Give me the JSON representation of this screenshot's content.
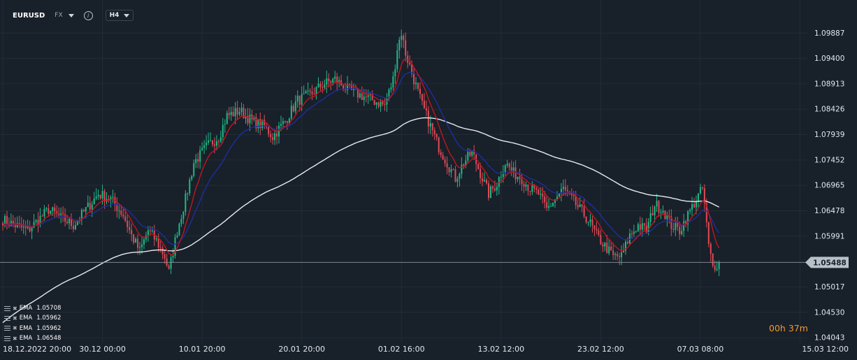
{
  "toolbar": {
    "symbol": "EURUSD",
    "market": "FX",
    "timeframe": "H4"
  },
  "timer": {
    "hours": "00",
    "h_unit": "h",
    "minutes": "37",
    "m_unit": "m"
  },
  "legend": [
    {
      "name": "EMA",
      "value": "1.05708"
    },
    {
      "name": "EMA",
      "value": "1.05962"
    },
    {
      "name": "EMA",
      "value": "1.05962"
    },
    {
      "name": "EMA",
      "value": "1.06548"
    }
  ],
  "colors": {
    "background": "#18202a",
    "bull": "#1fba85",
    "bear": "#e04a55",
    "ema_red": "#c0161e",
    "ema_blue": "#1f2e9c",
    "ema_white": "#e8eaee",
    "price_line": "#8a95a1",
    "price_tag": "#b8c0c8",
    "timer": "#f29b2a"
  },
  "chart_data": {
    "type": "candlestick",
    "current_price": 1.05488,
    "current_price_label": "1.05488",
    "ylim": [
      1.0395,
      1.1028
    ],
    "yticks": [
      "1.09887",
      "1.09400",
      "1.08913",
      "1.08426",
      "1.07939",
      "1.07452",
      "1.06965",
      "1.06478",
      "1.05991",
      "1.05017",
      "1.04530",
      "1.04043"
    ],
    "xticks": [
      {
        "label": "18.12.2022  20:00",
        "bar": 0
      },
      {
        "label": "30.12  00:00",
        "bar": 48
      },
      {
        "label": "10.01  20:00",
        "bar": 96
      },
      {
        "label": "20.01  20:00",
        "bar": 144
      },
      {
        "label": "01.02  16:00",
        "bar": 192
      },
      {
        "label": "13.02  12:00",
        "bar": 240
      },
      {
        "label": "23.02  12:00",
        "bar": 288
      },
      {
        "label": "07.03  08:00",
        "bar": 336
      },
      {
        "label": "15.03  12:00",
        "bar": 384
      }
    ],
    "bars_shown": 346,
    "close_anchors": [
      [
        0,
        1.063
      ],
      [
        12,
        1.061
      ],
      [
        22,
        1.065
      ],
      [
        34,
        1.062
      ],
      [
        40,
        1.065
      ],
      [
        46,
        1.068
      ],
      [
        52,
        1.067
      ],
      [
        58,
        1.064
      ],
      [
        62,
        1.06
      ],
      [
        66,
        1.057
      ],
      [
        70,
        1.061
      ],
      [
        74,
        1.059
      ],
      [
        78,
        1.056
      ],
      [
        80,
        1.053
      ],
      [
        84,
        1.061
      ],
      [
        88,
        1.067
      ],
      [
        92,
        1.074
      ],
      [
        98,
        1.077
      ],
      [
        104,
        1.079
      ],
      [
        108,
        1.083
      ],
      [
        114,
        1.084
      ],
      [
        120,
        1.082
      ],
      [
        126,
        1.081
      ],
      [
        130,
        1.079
      ],
      [
        136,
        1.082
      ],
      [
        142,
        1.086
      ],
      [
        148,
        1.087
      ],
      [
        154,
        1.089
      ],
      [
        160,
        1.09
      ],
      [
        166,
        1.088
      ],
      [
        172,
        1.087
      ],
      [
        178,
        1.086
      ],
      [
        184,
        1.085
      ],
      [
        188,
        1.09
      ],
      [
        190,
        1.096
      ],
      [
        192,
        1.099
      ],
      [
        194,
        1.095
      ],
      [
        198,
        1.09
      ],
      [
        202,
        1.085
      ],
      [
        206,
        1.081
      ],
      [
        210,
        1.077
      ],
      [
        214,
        1.074
      ],
      [
        218,
        1.071
      ],
      [
        222,
        1.074
      ],
      [
        226,
        1.076
      ],
      [
        230,
        1.072
      ],
      [
        234,
        1.068
      ],
      [
        238,
        1.07
      ],
      [
        242,
        1.074
      ],
      [
        246,
        1.072
      ],
      [
        250,
        1.071
      ],
      [
        254,
        1.069
      ],
      [
        258,
        1.068
      ],
      [
        262,
        1.065
      ],
      [
        266,
        1.067
      ],
      [
        270,
        1.069
      ],
      [
        274,
        1.067
      ],
      [
        278,
        1.065
      ],
      [
        282,
        1.063
      ],
      [
        286,
        1.06
      ],
      [
        290,
        1.058
      ],
      [
        294,
        1.056
      ],
      [
        298,
        1.056
      ],
      [
        302,
        1.06
      ],
      [
        306,
        1.062
      ],
      [
        310,
        1.061
      ],
      [
        314,
        1.066
      ],
      [
        318,
        1.065
      ],
      [
        322,
        1.062
      ],
      [
        326,
        1.061
      ],
      [
        330,
        1.064
      ],
      [
        334,
        1.067
      ],
      [
        337,
        1.069
      ],
      [
        338,
        1.066
      ],
      [
        340,
        1.058
      ],
      [
        342,
        1.054
      ],
      [
        345,
        1.0549
      ]
    ],
    "ema_periods": {
      "red": 9,
      "blue": 21,
      "white": 120
    }
  }
}
